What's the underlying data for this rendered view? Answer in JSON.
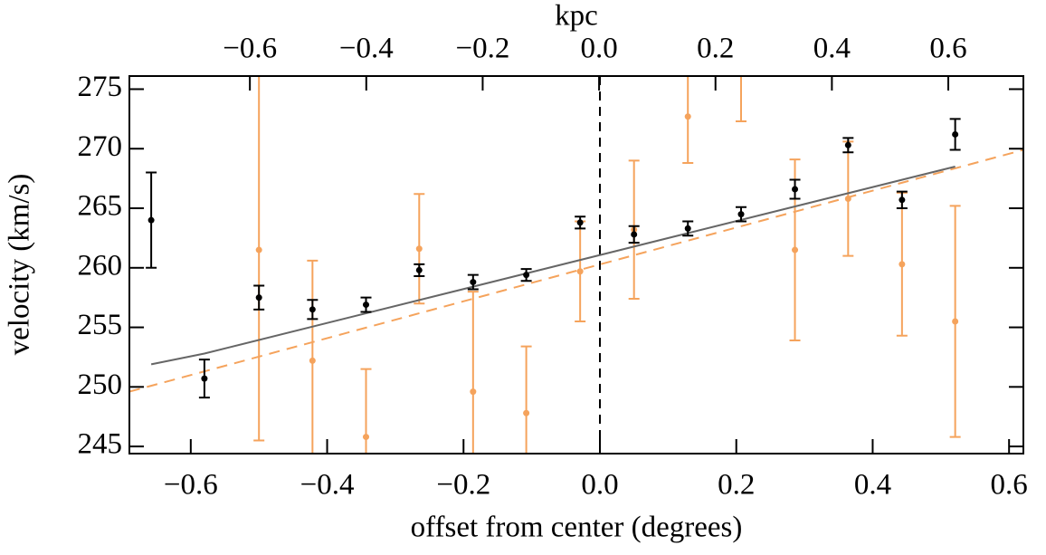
{
  "chart_data": {
    "type": "scatter",
    "title": "kpc",
    "xlabel": "offset from center (degrees)",
    "ylabel": "velocity (km/s)",
    "xlim": [
      -0.69,
      0.621
    ],
    "xticks": [
      {
        "value": -0.6,
        "label": "−0.6"
      },
      {
        "value": -0.4,
        "label": "−0.4"
      },
      {
        "value": -0.2,
        "label": "−0.2"
      },
      {
        "value": 0,
        "label": "0.0"
      },
      0.2,
      0.4,
      0.6
    ],
    "x2lim": [
      -0.807,
      0.729
    ],
    "x2ticks": [
      {
        "value": -0.6,
        "label": "−0.6"
      },
      {
        "value": -0.4,
        "label": "−0.4"
      },
      {
        "value": -0.2,
        "label": "−0.2"
      },
      {
        "value": 0,
        "label": "0.0"
      },
      0.2,
      0.4,
      0.6
    ],
    "ylim": [
      244.4,
      276.1
    ],
    "yticks": [
      245,
      250,
      255,
      260,
      265,
      270,
      275
    ],
    "vlines": [
      0
    ],
    "series": [
      {
        "mode": "errorbar",
        "color": "#f5a35c",
        "x": [
          -0.5,
          -0.4215,
          -0.343,
          -0.265,
          -0.186,
          -0.108,
          -0.029,
          0.05,
          0.129,
          0.207,
          0.286,
          0.364,
          0.443,
          0.521
        ],
        "values": [
          261.5,
          252.2,
          245.8,
          261.6,
          249.6,
          247.8,
          259.7,
          263.2,
          272.7,
          276.4,
          261.5,
          265.8,
          260.3,
          255.5
        ],
        "errors": [
          16,
          8.4,
          5.7,
          4.6,
          8.4,
          5.6,
          4.2,
          5.8,
          3.9,
          4.1,
          7.6,
          4.8,
          6.0,
          9.7
        ]
      },
      {
        "mode": "line",
        "color": "#f5a35c",
        "dash": true,
        "x": [
          -0.69,
          0.621
        ],
        "values": [
          249.6,
          269.9
        ]
      },
      {
        "mode": "line",
        "color": "#666666",
        "dash": false,
        "x": [
          -0.658,
          -0.58,
          0.521
        ],
        "values": [
          251.9,
          252.8,
          268.5
        ]
      },
      {
        "mode": "errorbar",
        "color": "#000000",
        "x": [
          -0.658,
          -0.58,
          -0.5,
          -0.4215,
          -0.343,
          -0.265,
          -0.186,
          -0.108,
          -0.029,
          0.05,
          0.129,
          0.207,
          0.286,
          0.364,
          0.443,
          0.521
        ],
        "values": [
          264.0,
          250.7,
          257.5,
          256.5,
          256.9,
          259.8,
          258.8,
          259.4,
          263.8,
          262.8,
          263.3,
          264.5,
          266.6,
          270.3,
          265.7,
          271.2
        ],
        "errors": [
          4.0,
          1.6,
          1.0,
          0.8,
          0.6,
          0.5,
          0.6,
          0.5,
          0.5,
          0.7,
          0.6,
          0.6,
          0.8,
          0.6,
          0.7,
          1.3
        ]
      }
    ]
  }
}
